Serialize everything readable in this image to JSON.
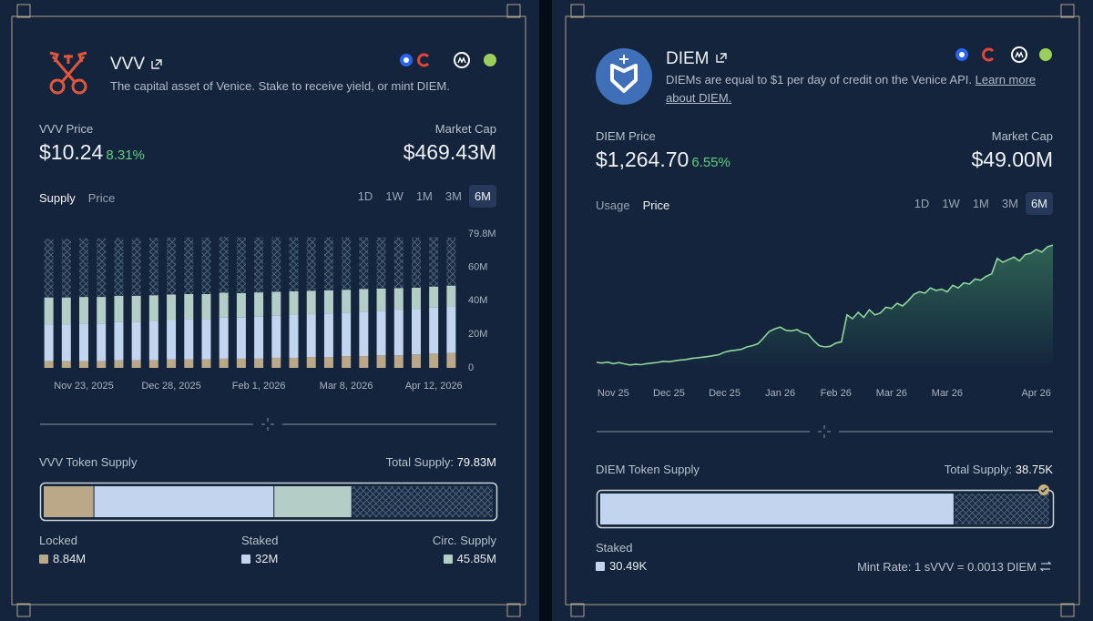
{
  "cards": [
    {
      "name": "VVV",
      "description": "The capital asset of Venice. Stake to receive yield, or mint DIEM.",
      "price_label": "VVV Price",
      "price": "$10.24",
      "change": "8.31%",
      "market_cap_label": "Market Cap",
      "market_cap": "$469.43M",
      "tabs": [
        "Supply",
        "Price"
      ],
      "active_tab": 0,
      "ranges": [
        "1D",
        "1W",
        "1M",
        "3M",
        "6M"
      ],
      "active_range": 4,
      "supply": {
        "title": "VVV Token Supply",
        "total_prefix": "Total Supply:",
        "total": 79.83,
        "total_label": "79.83M",
        "values": [
          8.84,
          32,
          45.85
        ],
        "value_labels": [
          "8.84M",
          "32M",
          "45.85M"
        ]
      }
    },
    {
      "name": "DIEM",
      "description": "DIEMs are equal to $1 per day of credit on the Venice API.",
      "link": "Learn more about DIEM.",
      "price_label": "DIEM Price",
      "price": "$1,264.70",
      "change": "6.55%",
      "market_cap_label": "Market Cap",
      "market_cap": "$49.00M",
      "tabs": [
        "Usage",
        "Price"
      ],
      "active_tab": 1,
      "ranges": [
        "1D",
        "1W",
        "1M",
        "3M",
        "6M"
      ],
      "active_range": 4,
      "supply": {
        "title": "DIEM Token Supply",
        "total_prefix": "Total Supply:",
        "total": 38.75,
        "total_label": "38.75K",
        "labels": [
          "Staked"
        ],
        "values": [
          30.49
        ],
        "value_labels": [
          "30.49K"
        ],
        "color": "#c3d5ee",
        "mint_rate": "Mint Rate: 1 sVVV = 0.0013 DIEM"
      }
    }
  ],
  "chart_data": [
    {
      "type": "bar",
      "stacked": true,
      "categories": [
        null,
        null,
        "Nov 23, 2025",
        null,
        null,
        null,
        null,
        "Dec 28, 2025",
        null,
        null,
        null,
        null,
        "Feb 1, 2026",
        null,
        null,
        null,
        null,
        "Mar 8, 2026",
        null,
        null,
        null,
        null,
        "Apr 12, 2026",
        null
      ],
      "series": [
        {
          "name": "Locked",
          "color": "#bba888",
          "values": [
            4,
            4,
            4,
            4,
            4.5,
            4.5,
            4.5,
            5,
            5,
            5,
            5.5,
            5.5,
            5.5,
            6,
            6,
            6.5,
            6.5,
            7,
            7,
            7.5,
            7.5,
            8,
            8.5,
            8.84
          ]
        },
        {
          "name": "Staked",
          "color": "#c3d5ee",
          "values": [
            22,
            22,
            22.5,
            22.5,
            23,
            23,
            23.5,
            23.5,
            24,
            24,
            24.5,
            24.5,
            25,
            25,
            25.5,
            25.5,
            26,
            26,
            26.5,
            26.5,
            27,
            27,
            27.5,
            28
          ]
        },
        {
          "name": "Circ. Supply",
          "color": "#b5cdc7",
          "values": [
            16,
            16,
            15.8,
            15.8,
            15.5,
            15.5,
            15.3,
            15.2,
            15,
            15,
            14.8,
            14.6,
            14.5,
            14.4,
            14.2,
            14,
            13.8,
            13.6,
            13.5,
            13.3,
            13,
            12.8,
            12.5,
            12.2
          ]
        },
        {
          "pattern": "hatch",
          "color": "#5a6b82",
          "values": [
            35,
            35,
            34.9,
            34.9,
            34.5,
            34.5,
            34.2,
            34,
            33.8,
            33.7,
            33.3,
            33.2,
            32.8,
            32.5,
            32.2,
            31.9,
            31.6,
            31.3,
            30.8,
            30.5,
            30.3,
            30,
            29.4,
            28.8
          ]
        }
      ],
      "ylim": [
        0,
        79.8
      ],
      "yticks": [
        0,
        {
          "value": 20,
          "label": "20M"
        },
        {
          "value": 40,
          "label": "40M"
        },
        {
          "value": 60,
          "label": "60M"
        },
        {
          "value": 79.8,
          "label": "79.8M"
        }
      ]
    },
    {
      "type": "line",
      "color": "#8fd69a",
      "area": true,
      "categories": [
        null,
        null,
        null,
        "Nov 25",
        null,
        null,
        null,
        null,
        null,
        null,
        null,
        null,
        null,
        "Dec 25",
        null,
        null,
        null,
        null,
        null,
        null,
        null,
        null,
        null,
        "Dec 25",
        null,
        null,
        null,
        null,
        null,
        null,
        null,
        null,
        null,
        "Jan 26",
        null,
        null,
        null,
        null,
        null,
        null,
        null,
        null,
        null,
        "Feb 26",
        null,
        null,
        null,
        null,
        null,
        null,
        null,
        null,
        null,
        "Mar 26",
        null,
        null,
        null,
        null,
        null,
        null,
        null,
        null,
        null,
        "Mar 26",
        null,
        null,
        null,
        null,
        null,
        null,
        null,
        null,
        null,
        null,
        null,
        null,
        null,
        null,
        null,
        "Apr 26",
        null,
        null,
        null
      ],
      "values": [
        350,
        345,
        352,
        340,
        348,
        338,
        330,
        335,
        332,
        340,
        345,
        350,
        358,
        355,
        362,
        368,
        372,
        380,
        385,
        390,
        395,
        402,
        410,
        430,
        440,
        445,
        452,
        470,
        480,
        495,
        540,
        590,
        610,
        625,
        600,
        595,
        605,
        580,
        570,
        520,
        480,
        470,
        475,
        500,
        510,
        720,
        690,
        740,
        700,
        760,
        720,
        735,
        780,
        770,
        810,
        790,
        830,
        880,
        900,
        890,
        930,
        910,
        920,
        900,
        950,
        930,
        970,
        960,
        1000,
        990,
        1020,
        1040,
        1160,
        1130,
        1150,
        1170,
        1140,
        1190,
        1200,
        1230,
        1210,
        1250,
        1264.7
      ],
      "ylim": [
        300,
        1400
      ]
    }
  ]
}
